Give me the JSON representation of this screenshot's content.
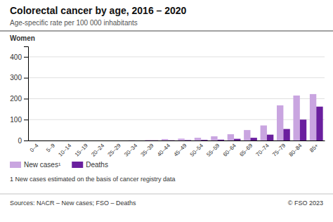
{
  "chart_data": {
    "type": "bar",
    "title": "Colorectal cancer by age, 2016 – 2020",
    "subtitle": "Age-specific rate per 100 000 inhabitants",
    "annotations": [
      "Women",
      "1 New cases estimated on the basis of cancer registry data",
      "Sources: NACR – New cases; FSO – Deaths",
      "© FSO 2023"
    ],
    "categories": [
      "0–4",
      "5–9",
      "10–14",
      "15–19",
      "20–24",
      "25–29",
      "30–34",
      "35–39",
      "40–44",
      "45–49",
      "50–54",
      "55–59",
      "60–64",
      "65–69",
      "70–74",
      "75–79",
      "80–84",
      "85+"
    ],
    "series": [
      {
        "name": "New cases¹",
        "color": "#c9a5e0",
        "values": [
          0,
          0,
          0,
          0,
          0,
          0,
          1,
          3,
          7,
          9,
          13,
          20,
          30,
          50,
          72,
          168,
          215,
          222
        ]
      },
      {
        "name": "Deaths",
        "color": "#6a1f9e",
        "values": [
          0,
          0,
          0,
          0,
          0,
          0,
          0,
          1,
          1,
          2,
          3,
          4,
          8,
          13,
          28,
          55,
          100,
          162
        ]
      }
    ],
    "ylim": [
      0,
      450
    ],
    "yticks": [
      0,
      100,
      200,
      300,
      400
    ],
    "grid": true,
    "legend": "bottom"
  }
}
